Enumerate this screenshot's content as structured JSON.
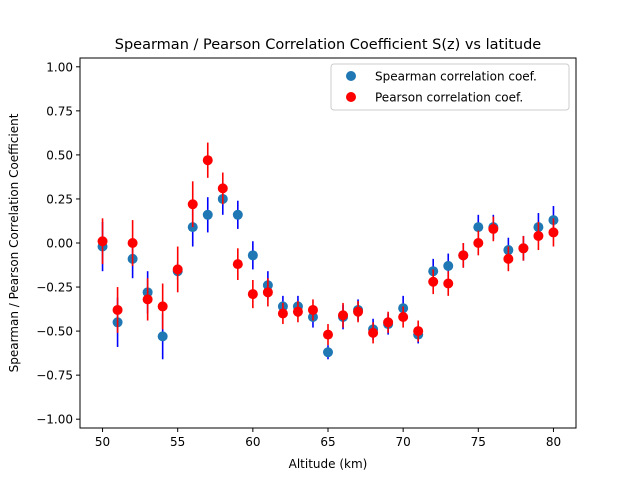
{
  "chart_data": {
    "type": "scatter",
    "title": "Spearman / Pearson Correlation Coefficient S(z) vs latitude",
    "xlabel": "Altitude (km)",
    "ylabel": "Spearman / Pearson Correlation Coefficient",
    "xlim": [
      48.5,
      81.5
    ],
    "ylim": [
      -1.05,
      1.05
    ],
    "xticks": [
      50,
      55,
      60,
      65,
      70,
      75,
      80
    ],
    "yticks": [
      -1.0,
      -0.75,
      -0.5,
      -0.25,
      0.0,
      0.25,
      0.5,
      0.75,
      1.0
    ],
    "xtick_labels": [
      "50",
      "55",
      "60",
      "65",
      "70",
      "75",
      "80"
    ],
    "ytick_labels": [
      "−1.00",
      "−0.75",
      "−0.50",
      "−0.25",
      "0.00",
      "0.25",
      "0.50",
      "0.75",
      "1.00"
    ],
    "grid": false,
    "legend_position": "top-right",
    "x": [
      50,
      51,
      52,
      53,
      54,
      55,
      56,
      57,
      58,
      59,
      60,
      61,
      62,
      63,
      64,
      65,
      66,
      67,
      68,
      69,
      70,
      71,
      72,
      73,
      74,
      75,
      76,
      77,
      78,
      79,
      80
    ],
    "series": [
      {
        "name": "Spearman correlation coef.",
        "color": "#1f77b4",
        "error_color": "#0000ff",
        "values": [
          -0.02,
          -0.45,
          -0.09,
          -0.28,
          -0.53,
          -0.16,
          0.09,
          0.16,
          0.25,
          0.16,
          -0.07,
          -0.24,
          -0.36,
          -0.36,
          -0.42,
          -0.62,
          -0.42,
          -0.38,
          -0.49,
          -0.46,
          -0.37,
          -0.52,
          -0.16,
          -0.13,
          -0.07,
          0.09,
          0.09,
          -0.04,
          -0.03,
          0.09,
          0.13
        ],
        "errors": [
          0.14,
          0.14,
          0.11,
          0.12,
          0.13,
          0.05,
          0.11,
          0.1,
          0.09,
          0.08,
          0.08,
          0.08,
          0.06,
          0.06,
          0.06,
          0.04,
          0.07,
          0.06,
          0.06,
          0.06,
          0.07,
          0.05,
          0.07,
          0.07,
          0.07,
          0.07,
          0.07,
          0.07,
          0.07,
          0.08,
          0.08
        ]
      },
      {
        "name": "Pearson correlation coef.",
        "color": "#ff0000",
        "error_color": "#ff0000",
        "values": [
          0.01,
          -0.38,
          0.0,
          -0.32,
          -0.36,
          -0.15,
          0.22,
          0.47,
          0.31,
          -0.12,
          -0.29,
          -0.28,
          -0.4,
          -0.39,
          -0.38,
          -0.52,
          -0.41,
          -0.39,
          -0.51,
          -0.45,
          -0.42,
          -0.5,
          -0.22,
          -0.23,
          -0.07,
          0.0,
          0.08,
          -0.09,
          -0.03,
          0.04,
          0.06
        ],
        "errors": [
          0.13,
          0.13,
          0.13,
          0.12,
          0.13,
          0.13,
          0.13,
          0.1,
          0.09,
          0.09,
          0.08,
          0.08,
          0.06,
          0.06,
          0.06,
          0.06,
          0.07,
          0.06,
          0.06,
          0.06,
          0.06,
          0.06,
          0.07,
          0.07,
          0.07,
          0.07,
          0.07,
          0.07,
          0.07,
          0.08,
          0.08
        ]
      }
    ]
  }
}
